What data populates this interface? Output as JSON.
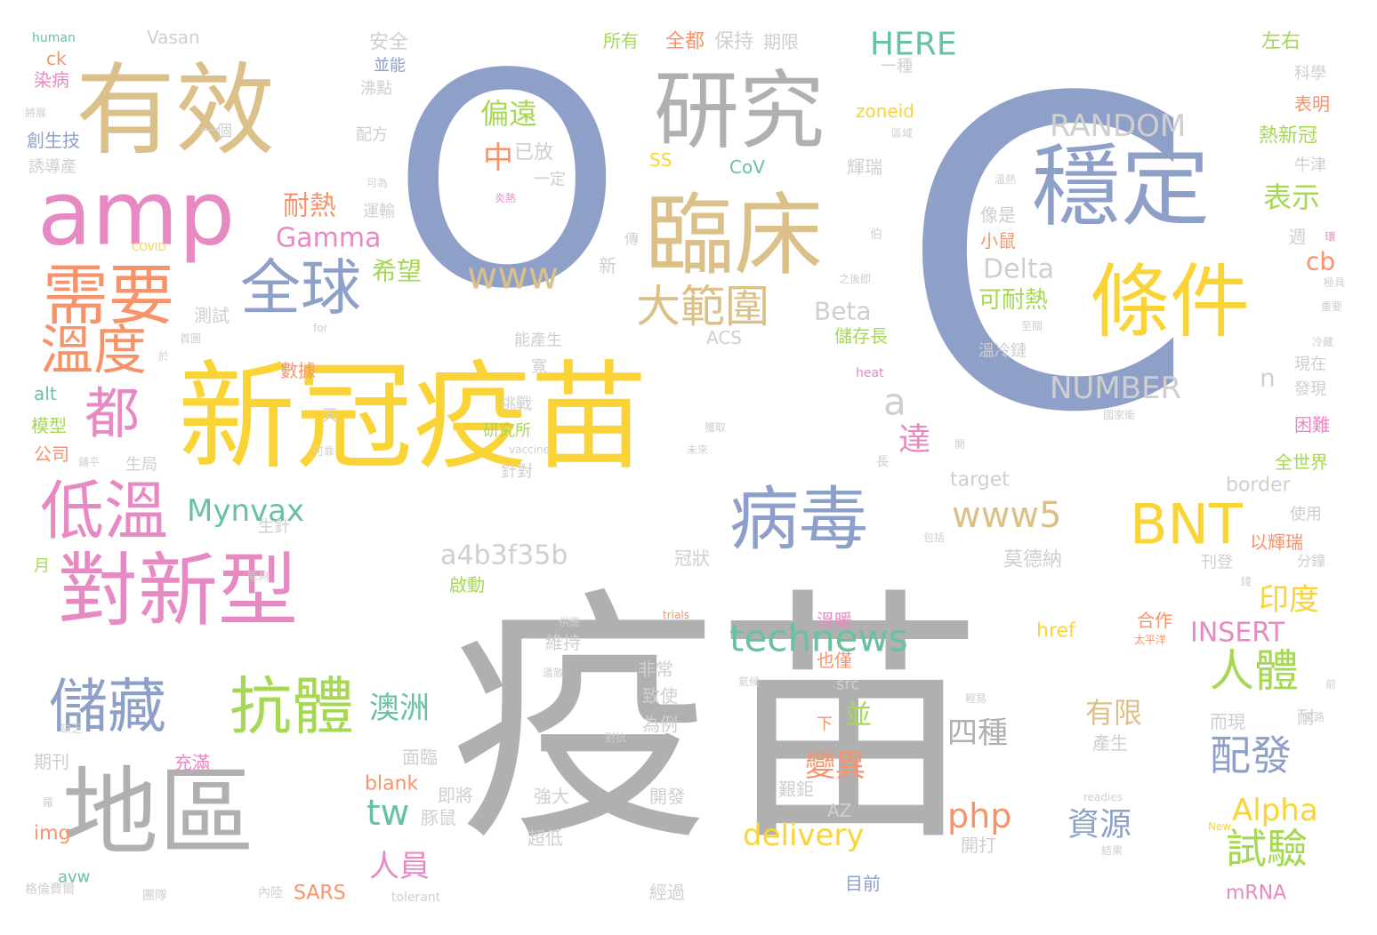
{
  "palette": {
    "slate_blue": "#8fa0c8",
    "tan": "#dcc08a",
    "gray": "#b0b0b0",
    "yellow": "#fad437",
    "green": "#68c29f",
    "pink": "#e78ac3",
    "orange": "#f7936a",
    "lime": "#a6d854",
    "light": "#cfcfcf"
  },
  "words": [
    {
      "text": "疫苗",
      "color": "gray"
    },
    {
      "text": "C",
      "color": "slate_blue"
    },
    {
      "text": "O",
      "color": "slate_blue"
    },
    {
      "text": "新冠疫苗",
      "color": "yellow"
    },
    {
      "text": "有效",
      "color": "tan"
    },
    {
      "text": "研究",
      "color": "gray"
    },
    {
      "text": "amp",
      "color": "pink"
    },
    {
      "text": "臨床",
      "color": "tan"
    },
    {
      "text": "穩定",
      "color": "slate_blue"
    },
    {
      "text": "條件",
      "color": "yellow"
    },
    {
      "text": "需要",
      "color": "orange"
    },
    {
      "text": "全球",
      "color": "slate_blue"
    },
    {
      "text": "溫度",
      "color": "orange"
    },
    {
      "text": "都",
      "color": "pink"
    },
    {
      "text": "低溫",
      "color": "pink"
    },
    {
      "text": "對新型",
      "color": "pink"
    },
    {
      "text": "地區",
      "color": "gray"
    },
    {
      "text": "儲藏",
      "color": "slate_blue"
    },
    {
      "text": "抗體",
      "color": "lime"
    },
    {
      "text": "病毒",
      "color": "slate_blue"
    },
    {
      "text": "BNT",
      "color": "yellow"
    },
    {
      "text": "www5",
      "color": "tan"
    },
    {
      "text": "technews",
      "color": "green"
    },
    {
      "text": "www",
      "color": "tan"
    },
    {
      "text": "大範圍",
      "color": "tan"
    },
    {
      "text": "RANDOM",
      "color": "light"
    },
    {
      "text": "HERE",
      "color": "green"
    },
    {
      "text": "NUMBER",
      "color": "light"
    },
    {
      "text": "Delta",
      "color": "light"
    },
    {
      "text": "Beta",
      "color": "light"
    },
    {
      "text": "Gamma",
      "color": "pink"
    },
    {
      "text": "Mynvax",
      "color": "green"
    },
    {
      "text": "a4b3f35b",
      "color": "light"
    },
    {
      "text": "達",
      "color": "pink"
    },
    {
      "text": "a",
      "color": "light"
    },
    {
      "text": "cb",
      "color": "orange"
    },
    {
      "text": "表示",
      "color": "lime"
    },
    {
      "text": "人體",
      "color": "lime"
    },
    {
      "text": "配發",
      "color": "slate_blue"
    },
    {
      "text": "試驗",
      "color": "lime"
    },
    {
      "text": "印度",
      "color": "yellow"
    },
    {
      "text": "INSERT",
      "color": "pink"
    },
    {
      "text": "Alpha",
      "color": "yellow"
    },
    {
      "text": "有限",
      "color": "tan"
    },
    {
      "text": "資源",
      "color": "slate_blue"
    },
    {
      "text": "php",
      "color": "orange"
    },
    {
      "text": "四種",
      "color": "gray"
    },
    {
      "text": "delivery",
      "color": "yellow"
    },
    {
      "text": "tw",
      "color": "green"
    },
    {
      "text": "變異",
      "color": "orange"
    },
    {
      "text": "澳洲",
      "color": "green"
    },
    {
      "text": "並",
      "color": "lime"
    },
    {
      "text": "人員",
      "color": "pink"
    },
    {
      "text": "耐熱",
      "color": "orange"
    },
    {
      "text": "希望",
      "color": "lime"
    },
    {
      "text": "偏遠",
      "color": "lime"
    },
    {
      "text": "中",
      "color": "orange"
    },
    {
      "text": "可耐熱",
      "color": "lime"
    },
    {
      "text": "n",
      "color": "light"
    },
    {
      "text": "Vasan",
      "color": "light"
    },
    {
      "text": "安全",
      "color": "light"
    },
    {
      "text": "並能",
      "color": "slate_blue"
    },
    {
      "text": "沸點",
      "color": "light"
    },
    {
      "text": "配方",
      "color": "light"
    },
    {
      "text": "一個",
      "color": "light"
    },
    {
      "text": "所有",
      "color": "lime"
    },
    {
      "text": "全都",
      "color": "orange"
    },
    {
      "text": "保持",
      "color": "light"
    },
    {
      "text": "期限",
      "color": "light"
    },
    {
      "text": "一種",
      "color": "light"
    },
    {
      "text": "zoneid",
      "color": "yellow"
    },
    {
      "text": "區域",
      "color": "light"
    },
    {
      "text": "左右",
      "color": "lime"
    },
    {
      "text": "科學",
      "color": "light"
    },
    {
      "text": "表明",
      "color": "orange"
    },
    {
      "text": "熱新冠",
      "color": "lime"
    },
    {
      "text": "牛津",
      "color": "light"
    },
    {
      "text": "已放",
      "color": "light"
    },
    {
      "text": "一定",
      "color": "light"
    },
    {
      "text": "SS",
      "color": "yellow"
    },
    {
      "text": "CoV",
      "color": "green"
    },
    {
      "text": "輝瑞",
      "color": "light"
    },
    {
      "text": "運輸",
      "color": "light"
    },
    {
      "text": "可為",
      "color": "light"
    },
    {
      "text": "炎熱",
      "color": "pink"
    },
    {
      "text": "溫熱",
      "color": "light"
    },
    {
      "text": "像是",
      "color": "light"
    },
    {
      "text": "小鼠",
      "color": "orange"
    },
    {
      "text": "傳",
      "color": "light"
    },
    {
      "text": "新",
      "color": "light"
    },
    {
      "text": "伯",
      "color": "light"
    },
    {
      "text": "之後即",
      "color": "light"
    },
    {
      "text": "至關",
      "color": "light"
    },
    {
      "text": "溫冷鏈",
      "color": "light"
    },
    {
      "text": "儲存長",
      "color": "lime"
    },
    {
      "text": "能產生",
      "color": "light"
    },
    {
      "text": "ACS",
      "color": "light"
    },
    {
      "text": "寬",
      "color": "light"
    },
    {
      "text": "挑戰",
      "color": "light"
    },
    {
      "text": "研究所",
      "color": "lime"
    },
    {
      "text": "針對",
      "color": "light"
    },
    {
      "text": "數據",
      "color": "orange"
    },
    {
      "text": "天",
      "color": "light"
    },
    {
      "text": "可靠",
      "color": "light"
    },
    {
      "text": "獲取",
      "color": "light"
    },
    {
      "text": "未來",
      "color": "light"
    },
    {
      "text": "vaccine",
      "color": "light"
    },
    {
      "text": "長",
      "color": "light"
    },
    {
      "text": "開",
      "color": "light"
    },
    {
      "text": "heat",
      "color": "pink"
    },
    {
      "text": "target",
      "color": "light"
    },
    {
      "text": "border",
      "color": "light"
    },
    {
      "text": "全世界",
      "color": "lime"
    },
    {
      "text": "使用",
      "color": "light"
    },
    {
      "text": "以輝瑞",
      "color": "orange"
    },
    {
      "text": "刊登",
      "color": "light"
    },
    {
      "text": "莫德納",
      "color": "light"
    },
    {
      "text": "包括",
      "color": "light"
    },
    {
      "text": "分鐘",
      "color": "light"
    },
    {
      "text": "合作",
      "color": "orange"
    },
    {
      "text": "太平洋",
      "color": "orange"
    },
    {
      "text": "href",
      "color": "yellow"
    },
    {
      "text": "產生",
      "color": "light"
    },
    {
      "text": "而現",
      "color": "light"
    },
    {
      "text": "耐",
      "color": "light"
    },
    {
      "text": "道路",
      "color": "light"
    },
    {
      "text": "前",
      "color": "light"
    },
    {
      "text": "readies",
      "color": "light"
    },
    {
      "text": "開打",
      "color": "light"
    },
    {
      "text": "結果",
      "color": "light"
    },
    {
      "text": "New",
      "color": "yellow"
    },
    {
      "text": "mRNA",
      "color": "pink"
    },
    {
      "text": "目前",
      "color": "slate_blue"
    },
    {
      "text": "AZ",
      "color": "light"
    },
    {
      "text": "艱鉅",
      "color": "light"
    },
    {
      "text": "下",
      "color": "orange"
    },
    {
      "text": "也僅",
      "color": "orange"
    },
    {
      "text": "src",
      "color": "light"
    },
    {
      "text": "溫暖",
      "color": "pink"
    },
    {
      "text": "氣候",
      "color": "light"
    },
    {
      "text": "非常",
      "color": "light"
    },
    {
      "text": "致使",
      "color": "light"
    },
    {
      "text": "為例",
      "color": "light"
    },
    {
      "text": "對抗",
      "color": "light"
    },
    {
      "text": "開發",
      "color": "light"
    },
    {
      "text": "強大",
      "color": "light"
    },
    {
      "text": "超低",
      "color": "light"
    },
    {
      "text": "經過",
      "color": "light"
    },
    {
      "text": "tolerant",
      "color": "light"
    },
    {
      "text": "內陸",
      "color": "light"
    },
    {
      "text": "SARS",
      "color": "orange"
    },
    {
      "text": "團隊",
      "color": "light"
    },
    {
      "text": "avw",
      "color": "green"
    },
    {
      "text": "格倫費爾",
      "color": "light"
    },
    {
      "text": "img",
      "color": "orange"
    },
    {
      "text": "羅",
      "color": "light"
    },
    {
      "text": "期刊",
      "color": "light"
    },
    {
      "text": "缺乏",
      "color": "light"
    },
    {
      "text": "充滿",
      "color": "pink"
    },
    {
      "text": "blank",
      "color": "orange"
    },
    {
      "text": "即將",
      "color": "light"
    },
    {
      "text": "豚鼠",
      "color": "light"
    },
    {
      "text": "面臨",
      "color": "light"
    },
    {
      "text": "啟動",
      "color": "lime"
    },
    {
      "text": "冠狀",
      "color": "light"
    },
    {
      "text": "維持",
      "color": "light"
    },
    {
      "text": "供應",
      "color": "light"
    },
    {
      "text": "trials",
      "color": "orange"
    },
    {
      "text": "遣散",
      "color": "light"
    },
    {
      "text": "能夠",
      "color": "light"
    },
    {
      "text": "生針",
      "color": "light"
    },
    {
      "text": "月",
      "color": "lime"
    },
    {
      "text": "生局",
      "color": "light"
    },
    {
      "text": "鋪平",
      "color": "light"
    },
    {
      "text": "公司",
      "color": "orange"
    },
    {
      "text": "模型",
      "color": "lime"
    },
    {
      "text": "alt",
      "color": "green"
    },
    {
      "text": "於",
      "color": "light"
    },
    {
      "text": "首圖",
      "color": "light"
    },
    {
      "text": "for",
      "color": "light"
    },
    {
      "text": "測試",
      "color": "light"
    },
    {
      "text": "COVID",
      "color": "yellow"
    },
    {
      "text": "誘導產",
      "color": "light"
    },
    {
      "text": "創生技",
      "color": "slate_blue"
    },
    {
      "text": "將展",
      "color": "light"
    },
    {
      "text": "染病",
      "color": "pink"
    },
    {
      "text": "ck",
      "color": "orange"
    },
    {
      "text": "human",
      "color": "green"
    },
    {
      "text": "現在",
      "color": "light"
    },
    {
      "text": "發現",
      "color": "light"
    },
    {
      "text": "困難",
      "color": "pink"
    },
    {
      "text": "國家衛",
      "color": "light"
    },
    {
      "text": "週",
      "color": "light"
    },
    {
      "text": "環",
      "color": "pink"
    },
    {
      "text": "極具",
      "color": "light"
    },
    {
      "text": "重要",
      "color": "light"
    },
    {
      "text": "冷藏",
      "color": "light"
    },
    {
      "text": "錢",
      "color": "light"
    },
    {
      "text": "輕易",
      "color": "light"
    }
  ]
}
